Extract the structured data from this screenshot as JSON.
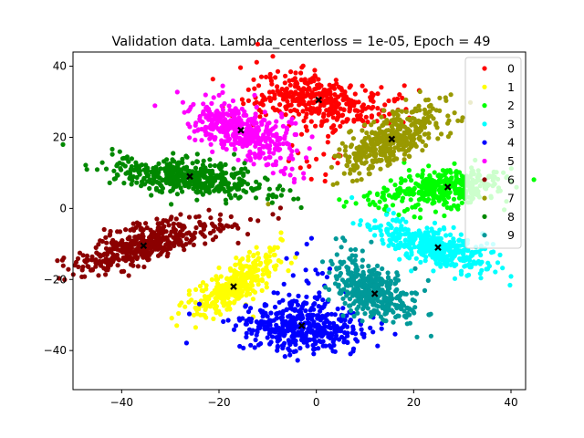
{
  "chart_data": {
    "type": "scatter",
    "title": "Validation data. Lambda_centerloss = 1e-05, Epoch = 49",
    "xlabel": "",
    "ylabel": "",
    "xlim": [
      -50,
      43
    ],
    "ylim": [
      -51,
      44
    ],
    "xticks": [
      -40,
      -20,
      0,
      20,
      40
    ],
    "yticks": [
      -40,
      -20,
      0,
      20,
      40
    ],
    "xtick_labels": [
      "−40",
      "−20",
      "0",
      "20",
      "40"
    ],
    "ytick_labels": [
      "−40",
      "−20",
      "0",
      "20",
      "40"
    ],
    "grid": false,
    "legend_position": "top-right",
    "series": [
      {
        "name": "0",
        "color": "#ff0000",
        "center": [
          0.5,
          30.5
        ],
        "spread": [
          3.5,
          7.5
        ],
        "angle_deg": 80,
        "n": 400
      },
      {
        "name": "1",
        "color": "#ffff00",
        "center": [
          -17.0,
          -22.0
        ],
        "spread": [
          5.5,
          2.2
        ],
        "angle_deg": 45,
        "n": 350
      },
      {
        "name": "2",
        "color": "#00ff00",
        "center": [
          27.0,
          6.0
        ],
        "spread": [
          6.0,
          2.5
        ],
        "angle_deg": 10,
        "n": 400
      },
      {
        "name": "3",
        "color": "#00ffff",
        "center": [
          25.0,
          -11.0
        ],
        "spread": [
          6.5,
          2.5
        ],
        "angle_deg": -25,
        "n": 400
      },
      {
        "name": "4",
        "color": "#0000ff",
        "center": [
          -3.0,
          -33.0
        ],
        "spread": [
          3.5,
          6.5
        ],
        "angle_deg": 85,
        "n": 450
      },
      {
        "name": "5",
        "color": "#ff00ff",
        "center": [
          -15.5,
          22.0
        ],
        "spread": [
          6.0,
          3.0
        ],
        "angle_deg": -30,
        "n": 400
      },
      {
        "name": "6",
        "color": "#8b0000",
        "center": [
          -35.5,
          -10.5
        ],
        "spread": [
          7.0,
          2.5
        ],
        "angle_deg": 25,
        "n": 450
      },
      {
        "name": "7",
        "color": "#999900",
        "center": [
          15.5,
          19.5
        ],
        "spread": [
          6.5,
          3.0
        ],
        "angle_deg": 40,
        "n": 400
      },
      {
        "name": "8",
        "color": "#008800",
        "center": [
          -26.0,
          9.0
        ],
        "spread": [
          8.0,
          2.5
        ],
        "angle_deg": -8,
        "n": 450
      },
      {
        "name": "9",
        "color": "#009999",
        "center": [
          12.0,
          -24.0
        ],
        "spread": [
          5.0,
          3.0
        ],
        "angle_deg": -40,
        "n": 400
      }
    ]
  }
}
